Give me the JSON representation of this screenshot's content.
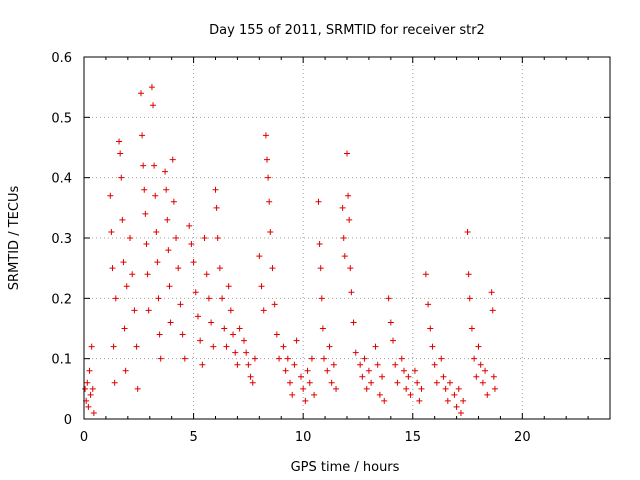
{
  "chart_data": {
    "type": "scatter",
    "title": "Day 155 of 2011, SRMTID for receiver str2",
    "xlabel": "GPS time / hours",
    "ylabel": "SRMTID / TECUs",
    "xlim": [
      0,
      24
    ],
    "ylim": [
      0,
      0.6
    ],
    "xticks": [
      0,
      5,
      10,
      15,
      20
    ],
    "yticks": [
      0,
      0.1,
      0.2,
      0.3,
      0.4,
      0.5,
      0.6
    ],
    "ytick_labels": [
      "0",
      "0.1",
      "0.2",
      "0.3",
      "0.4",
      "0.5",
      "0.6"
    ],
    "grid": true,
    "marker": "+",
    "color": "#e00000",
    "series": [
      {
        "name": "str2",
        "points": [
          [
            0.05,
            0.05
          ],
          [
            0.1,
            0.03
          ],
          [
            0.15,
            0.06
          ],
          [
            0.2,
            0.02
          ],
          [
            0.25,
            0.08
          ],
          [
            0.3,
            0.04
          ],
          [
            0.35,
            0.12
          ],
          [
            0.4,
            0.05
          ],
          [
            0.45,
            0.01
          ],
          [
            1.2,
            0.37
          ],
          [
            1.25,
            0.31
          ],
          [
            1.3,
            0.25
          ],
          [
            1.35,
            0.12
          ],
          [
            1.4,
            0.06
          ],
          [
            1.45,
            0.2
          ],
          [
            1.6,
            0.46
          ],
          [
            1.65,
            0.44
          ],
          [
            1.7,
            0.4
          ],
          [
            1.75,
            0.33
          ],
          [
            1.8,
            0.26
          ],
          [
            1.85,
            0.15
          ],
          [
            1.9,
            0.08
          ],
          [
            1.95,
            0.22
          ],
          [
            2.1,
            0.3
          ],
          [
            2.2,
            0.24
          ],
          [
            2.3,
            0.18
          ],
          [
            2.4,
            0.12
          ],
          [
            2.45,
            0.05
          ],
          [
            2.6,
            0.54
          ],
          [
            2.65,
            0.47
          ],
          [
            2.7,
            0.42
          ],
          [
            2.75,
            0.38
          ],
          [
            2.8,
            0.34
          ],
          [
            2.85,
            0.29
          ],
          [
            2.9,
            0.24
          ],
          [
            2.95,
            0.18
          ],
          [
            3.1,
            0.55
          ],
          [
            3.15,
            0.52
          ],
          [
            3.2,
            0.42
          ],
          [
            3.25,
            0.37
          ],
          [
            3.3,
            0.31
          ],
          [
            3.35,
            0.26
          ],
          [
            3.4,
            0.2
          ],
          [
            3.45,
            0.14
          ],
          [
            3.5,
            0.1
          ],
          [
            3.7,
            0.41
          ],
          [
            3.75,
            0.38
          ],
          [
            3.8,
            0.33
          ],
          [
            3.85,
            0.28
          ],
          [
            3.9,
            0.22
          ],
          [
            3.95,
            0.16
          ],
          [
            4.05,
            0.43
          ],
          [
            4.1,
            0.36
          ],
          [
            4.2,
            0.3
          ],
          [
            4.3,
            0.25
          ],
          [
            4.4,
            0.19
          ],
          [
            4.5,
            0.14
          ],
          [
            4.6,
            0.1
          ],
          [
            4.8,
            0.32
          ],
          [
            4.9,
            0.29
          ],
          [
            5.0,
            0.26
          ],
          [
            5.1,
            0.21
          ],
          [
            5.2,
            0.17
          ],
          [
            5.3,
            0.13
          ],
          [
            5.4,
            0.09
          ],
          [
            5.5,
            0.3
          ],
          [
            5.6,
            0.24
          ],
          [
            5.7,
            0.2
          ],
          [
            5.8,
            0.16
          ],
          [
            5.9,
            0.12
          ],
          [
            6.0,
            0.38
          ],
          [
            6.05,
            0.35
          ],
          [
            6.1,
            0.3
          ],
          [
            6.2,
            0.25
          ],
          [
            6.3,
            0.2
          ],
          [
            6.4,
            0.15
          ],
          [
            6.5,
            0.12
          ],
          [
            6.6,
            0.22
          ],
          [
            6.7,
            0.18
          ],
          [
            6.8,
            0.14
          ],
          [
            6.9,
            0.11
          ],
          [
            7.0,
            0.09
          ],
          [
            7.1,
            0.15
          ],
          [
            7.3,
            0.13
          ],
          [
            7.4,
            0.11
          ],
          [
            7.5,
            0.09
          ],
          [
            7.6,
            0.07
          ],
          [
            7.7,
            0.06
          ],
          [
            7.8,
            0.1
          ],
          [
            8.0,
            0.27
          ],
          [
            8.1,
            0.22
          ],
          [
            8.2,
            0.18
          ],
          [
            8.3,
            0.47
          ],
          [
            8.35,
            0.43
          ],
          [
            8.4,
            0.4
          ],
          [
            8.45,
            0.36
          ],
          [
            8.5,
            0.31
          ],
          [
            8.6,
            0.25
          ],
          [
            8.7,
            0.19
          ],
          [
            8.8,
            0.14
          ],
          [
            8.9,
            0.1
          ],
          [
            9.1,
            0.12
          ],
          [
            9.2,
            0.08
          ],
          [
            9.3,
            0.1
          ],
          [
            9.4,
            0.06
          ],
          [
            9.5,
            0.04
          ],
          [
            9.6,
            0.09
          ],
          [
            9.7,
            0.13
          ],
          [
            9.9,
            0.07
          ],
          [
            10.0,
            0.05
          ],
          [
            10.1,
            0.03
          ],
          [
            10.2,
            0.08
          ],
          [
            10.3,
            0.06
          ],
          [
            10.4,
            0.1
          ],
          [
            10.5,
            0.04
          ],
          [
            10.7,
            0.36
          ],
          [
            10.75,
            0.29
          ],
          [
            10.8,
            0.25
          ],
          [
            10.85,
            0.2
          ],
          [
            10.9,
            0.15
          ],
          [
            10.95,
            0.1
          ],
          [
            11.1,
            0.08
          ],
          [
            11.2,
            0.12
          ],
          [
            11.3,
            0.06
          ],
          [
            11.4,
            0.09
          ],
          [
            11.5,
            0.05
          ],
          [
            11.8,
            0.35
          ],
          [
            11.85,
            0.3
          ],
          [
            11.9,
            0.27
          ],
          [
            12.0,
            0.44
          ],
          [
            12.05,
            0.37
          ],
          [
            12.1,
            0.33
          ],
          [
            12.15,
            0.25
          ],
          [
            12.2,
            0.21
          ],
          [
            12.3,
            0.16
          ],
          [
            12.4,
            0.11
          ],
          [
            12.6,
            0.09
          ],
          [
            12.7,
            0.07
          ],
          [
            12.8,
            0.1
          ],
          [
            12.9,
            0.05
          ],
          [
            13.0,
            0.08
          ],
          [
            13.1,
            0.06
          ],
          [
            13.3,
            0.12
          ],
          [
            13.4,
            0.09
          ],
          [
            13.5,
            0.04
          ],
          [
            13.6,
            0.07
          ],
          [
            13.7,
            0.03
          ],
          [
            13.9,
            0.2
          ],
          [
            14.0,
            0.16
          ],
          [
            14.1,
            0.13
          ],
          [
            14.2,
            0.09
          ],
          [
            14.3,
            0.06
          ],
          [
            14.5,
            0.1
          ],
          [
            14.6,
            0.08
          ],
          [
            14.7,
            0.05
          ],
          [
            14.8,
            0.07
          ],
          [
            14.9,
            0.04
          ],
          [
            15.1,
            0.08
          ],
          [
            15.2,
            0.06
          ],
          [
            15.3,
            0.03
          ],
          [
            15.4,
            0.05
          ],
          [
            15.6,
            0.24
          ],
          [
            15.7,
            0.19
          ],
          [
            15.8,
            0.15
          ],
          [
            15.9,
            0.12
          ],
          [
            16.0,
            0.09
          ],
          [
            16.1,
            0.06
          ],
          [
            16.3,
            0.1
          ],
          [
            16.4,
            0.07
          ],
          [
            16.5,
            0.05
          ],
          [
            16.6,
            0.03
          ],
          [
            16.7,
            0.06
          ],
          [
            16.9,
            0.04
          ],
          [
            17.0,
            0.02
          ],
          [
            17.1,
            0.05
          ],
          [
            17.2,
            0.01
          ],
          [
            17.3,
            0.03
          ],
          [
            17.5,
            0.31
          ],
          [
            17.55,
            0.24
          ],
          [
            17.6,
            0.2
          ],
          [
            17.7,
            0.15
          ],
          [
            17.8,
            0.1
          ],
          [
            17.9,
            0.07
          ],
          [
            18.0,
            0.12
          ],
          [
            18.1,
            0.09
          ],
          [
            18.2,
            0.06
          ],
          [
            18.3,
            0.08
          ],
          [
            18.4,
            0.04
          ],
          [
            18.6,
            0.21
          ],
          [
            18.65,
            0.18
          ],
          [
            18.7,
            0.07
          ],
          [
            18.75,
            0.05
          ]
        ]
      }
    ]
  }
}
